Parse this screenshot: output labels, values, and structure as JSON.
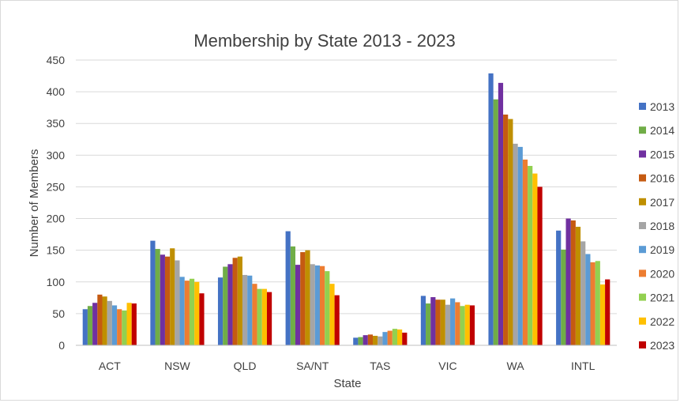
{
  "chart_data": {
    "type": "bar",
    "title": "Membership by State 2013 - 2023",
    "xlabel": "State",
    "ylabel": "Number of Members",
    "ylim": [
      0,
      450
    ],
    "yticks": [
      0,
      50,
      100,
      150,
      200,
      250,
      300,
      350,
      400,
      450
    ],
    "grid": true,
    "legend_position": "right",
    "categories": [
      "ACT",
      "NSW",
      "QLD",
      "SA/NT",
      "TAS",
      "VIC",
      "WA",
      "INTL"
    ],
    "series": [
      {
        "name": "2013",
        "color": "#4472C4",
        "values": [
          57,
          165,
          107,
          180,
          12,
          78,
          429,
          181
        ]
      },
      {
        "name": "2014",
        "color": "#70AD47",
        "values": [
          62,
          152,
          124,
          156,
          13,
          66,
          388,
          151
        ]
      },
      {
        "name": "2015",
        "color": "#7030A0",
        "values": [
          67,
          143,
          128,
          127,
          16,
          76,
          414,
          200
        ]
      },
      {
        "name": "2016",
        "color": "#C55A11",
        "values": [
          80,
          140,
          138,
          147,
          17,
          72,
          364,
          197
        ]
      },
      {
        "name": "2017",
        "color": "#BF8F00",
        "values": [
          77,
          153,
          140,
          150,
          15,
          72,
          357,
          187
        ]
      },
      {
        "name": "2018",
        "color": "#A5A5A5",
        "values": [
          70,
          134,
          111,
          128,
          14,
          64,
          318,
          164
        ]
      },
      {
        "name": "2019",
        "color": "#5B9BD5",
        "values": [
          63,
          108,
          110,
          126,
          21,
          74,
          313,
          144
        ]
      },
      {
        "name": "2020",
        "color": "#ED7D31",
        "values": [
          57,
          102,
          97,
          125,
          23,
          68,
          293,
          131
        ]
      },
      {
        "name": "2021",
        "color": "#92D050",
        "values": [
          55,
          105,
          89,
          117,
          26,
          62,
          283,
          133
        ]
      },
      {
        "name": "2022",
        "color": "#FFC000",
        "values": [
          67,
          100,
          89,
          97,
          25,
          64,
          271,
          96
        ]
      },
      {
        "name": "2023",
        "color": "#C00000",
        "values": [
          66,
          82,
          84,
          79,
          20,
          63,
          250,
          104
        ]
      }
    ]
  }
}
